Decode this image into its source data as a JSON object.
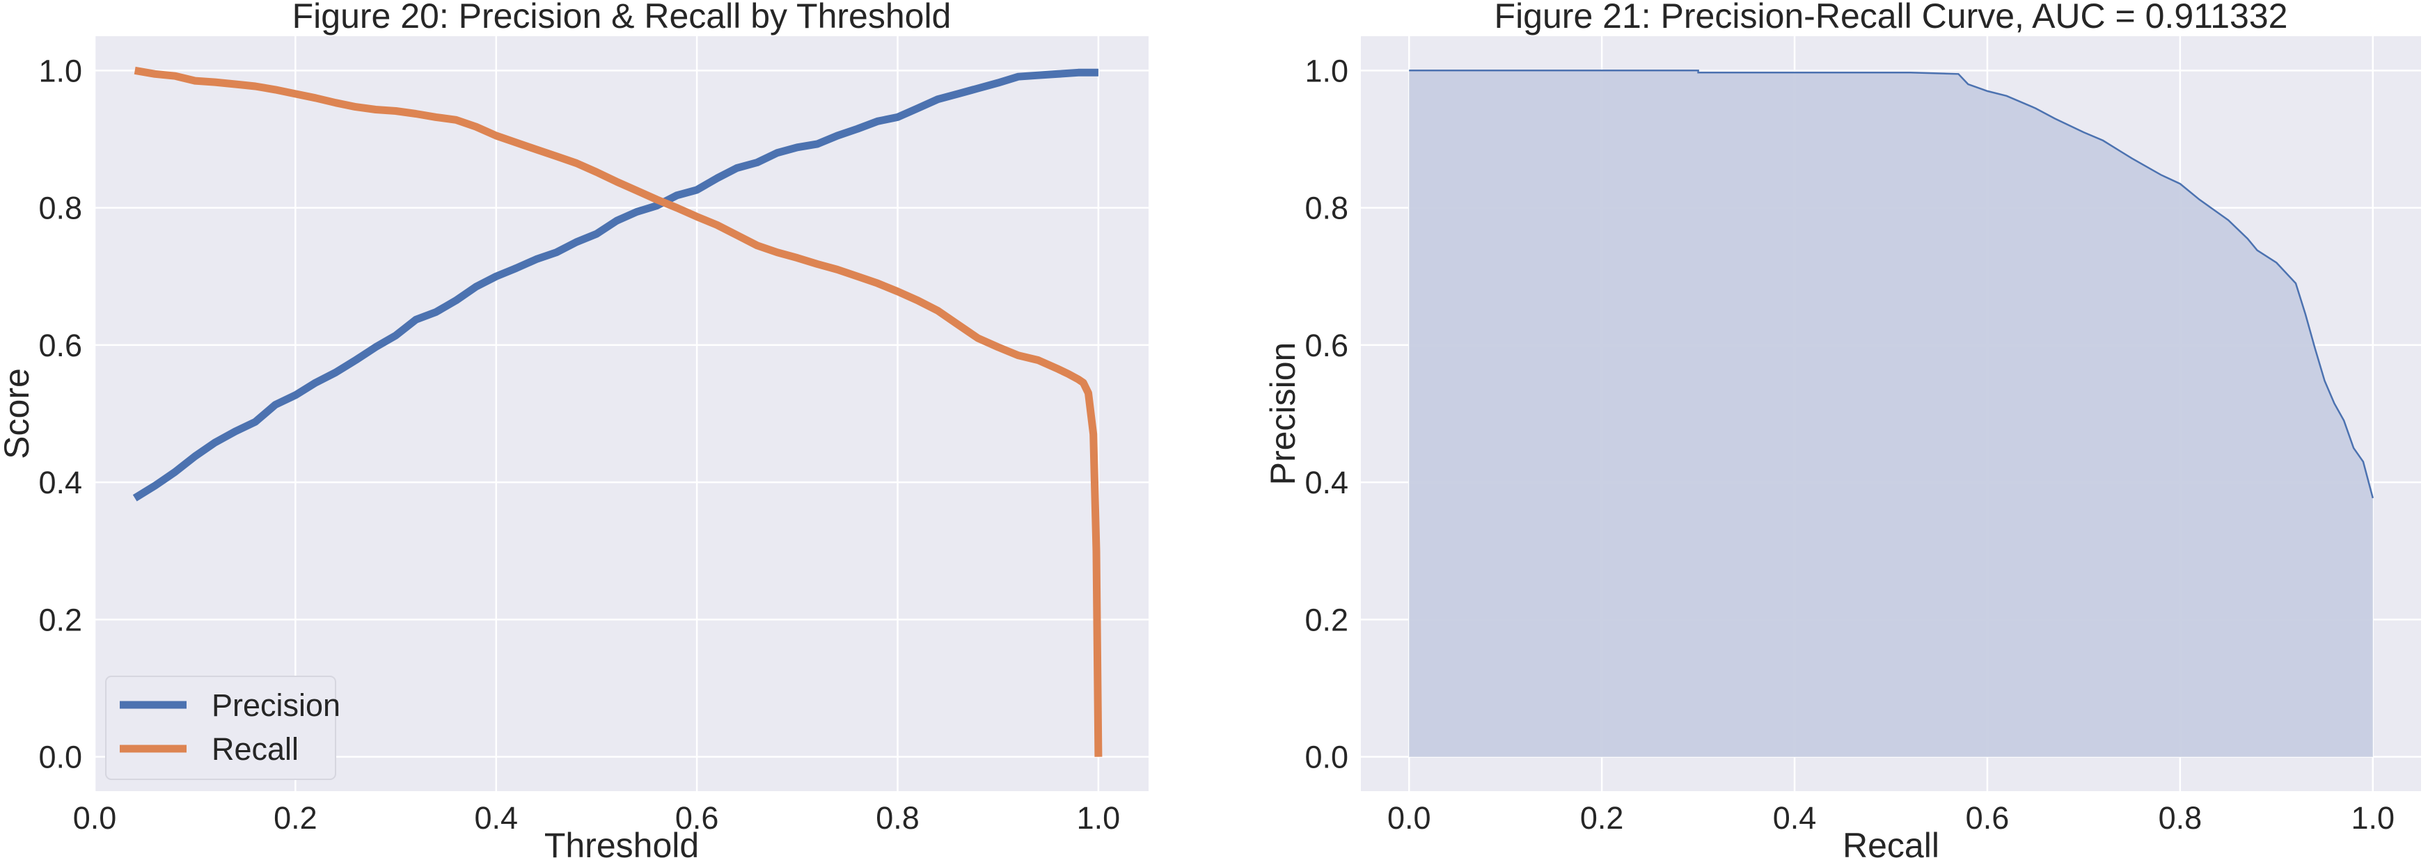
{
  "colors": {
    "background": "#ffffff",
    "axes_face": "#eaeaf2",
    "grid": "#ffffff",
    "text": "#262626",
    "precision": "#4c72b0",
    "recall": "#dd8452",
    "pr_line": "#4c72b0",
    "pr_fill": "#c7cde2"
  },
  "chart_data": [
    {
      "type": "line",
      "title": "Figure 20: Precision & Recall by Threshold",
      "xlabel": "Threshold",
      "ylabel": "Score",
      "xlim": [
        0.0,
        1.05
      ],
      "ylim": [
        -0.05,
        1.05
      ],
      "xticks": [
        0.0,
        0.2,
        0.4,
        0.6,
        0.8,
        1.0
      ],
      "xtick_labels": [
        "0.0",
        "0.2",
        "0.4",
        "0.6",
        "0.8",
        "1.0"
      ],
      "yticks": [
        0.0,
        0.2,
        0.4,
        0.6,
        0.8,
        1.0
      ],
      "ytick_labels": [
        "0.0",
        "0.2",
        "0.4",
        "0.6",
        "0.8",
        "1.0"
      ],
      "grid": true,
      "legend": "lower-left",
      "series": [
        {
          "name": "Precision",
          "color": "#4c72b0",
          "x": [
            0.04,
            0.06,
            0.08,
            0.1,
            0.12,
            0.14,
            0.16,
            0.18,
            0.2,
            0.22,
            0.24,
            0.26,
            0.28,
            0.3,
            0.32,
            0.34,
            0.36,
            0.38,
            0.4,
            0.42,
            0.44,
            0.46,
            0.48,
            0.5,
            0.52,
            0.54,
            0.56,
            0.58,
            0.6,
            0.62,
            0.64,
            0.66,
            0.68,
            0.7,
            0.72,
            0.74,
            0.76,
            0.78,
            0.8,
            0.82,
            0.84,
            0.86,
            0.88,
            0.9,
            0.92,
            0.94,
            0.96,
            0.98,
            1.0
          ],
          "y": [
            0.377,
            0.395,
            0.415,
            0.438,
            0.458,
            0.474,
            0.488,
            0.513,
            0.527,
            0.545,
            0.56,
            0.578,
            0.597,
            0.614,
            0.637,
            0.648,
            0.665,
            0.685,
            0.7,
            0.712,
            0.725,
            0.735,
            0.75,
            0.762,
            0.781,
            0.794,
            0.803,
            0.818,
            0.826,
            0.843,
            0.858,
            0.866,
            0.88,
            0.888,
            0.893,
            0.905,
            0.915,
            0.926,
            0.932,
            0.945,
            0.958,
            0.966,
            0.974,
            0.982,
            0.991,
            0.993,
            0.995,
            0.997,
            0.997
          ]
        },
        {
          "name": "Recall",
          "color": "#dd8452",
          "x": [
            0.04,
            0.06,
            0.08,
            0.1,
            0.12,
            0.14,
            0.16,
            0.18,
            0.2,
            0.22,
            0.24,
            0.26,
            0.28,
            0.3,
            0.32,
            0.34,
            0.36,
            0.38,
            0.4,
            0.42,
            0.44,
            0.46,
            0.48,
            0.5,
            0.52,
            0.54,
            0.56,
            0.58,
            0.6,
            0.62,
            0.64,
            0.66,
            0.68,
            0.7,
            0.72,
            0.74,
            0.76,
            0.78,
            0.8,
            0.82,
            0.84,
            0.86,
            0.88,
            0.9,
            0.92,
            0.94,
            0.96,
            0.97,
            0.98,
            0.985,
            0.99,
            0.995,
            0.998,
            1.0
          ],
          "y": [
            1.0,
            0.995,
            0.992,
            0.985,
            0.983,
            0.98,
            0.977,
            0.972,
            0.966,
            0.96,
            0.953,
            0.947,
            0.943,
            0.941,
            0.937,
            0.932,
            0.928,
            0.918,
            0.905,
            0.895,
            0.885,
            0.875,
            0.865,
            0.852,
            0.838,
            0.825,
            0.812,
            0.8,
            0.787,
            0.775,
            0.76,
            0.745,
            0.735,
            0.727,
            0.718,
            0.71,
            0.7,
            0.69,
            0.678,
            0.665,
            0.65,
            0.63,
            0.61,
            0.597,
            0.585,
            0.578,
            0.565,
            0.558,
            0.55,
            0.545,
            0.53,
            0.47,
            0.3,
            0.0
          ]
        }
      ]
    },
    {
      "type": "area",
      "title": "Figure 21: Precision-Recall Curve, AUC = 0.911332",
      "xlabel": "Recall",
      "ylabel": "Precision",
      "xlim": [
        -0.05,
        1.05
      ],
      "ylim": [
        -0.05,
        1.05
      ],
      "xticks": [
        0.0,
        0.2,
        0.4,
        0.6,
        0.8,
        1.0
      ],
      "xtick_labels": [
        "0.0",
        "0.2",
        "0.4",
        "0.6",
        "0.8",
        "1.0"
      ],
      "yticks": [
        0.0,
        0.2,
        0.4,
        0.6,
        0.8,
        1.0
      ],
      "ytick_labels": [
        "0.0",
        "0.2",
        "0.4",
        "0.6",
        "0.8",
        "1.0"
      ],
      "grid": true,
      "series": [
        {
          "color": "#4c72b0",
          "x": [
            0.0,
            0.3,
            0.3,
            0.52,
            0.57,
            0.58,
            0.6,
            0.62,
            0.65,
            0.67,
            0.7,
            0.72,
            0.75,
            0.78,
            0.8,
            0.82,
            0.85,
            0.87,
            0.88,
            0.9,
            0.92,
            0.93,
            0.94,
            0.95,
            0.96,
            0.97,
            0.98,
            0.99,
            1.0
          ],
          "y": [
            1.0,
            1.0,
            0.997,
            0.997,
            0.995,
            0.98,
            0.97,
            0.963,
            0.945,
            0.93,
            0.91,
            0.898,
            0.872,
            0.848,
            0.835,
            0.812,
            0.782,
            0.755,
            0.738,
            0.72,
            0.69,
            0.645,
            0.595,
            0.548,
            0.515,
            0.49,
            0.45,
            0.43,
            0.377
          ]
        }
      ]
    }
  ]
}
